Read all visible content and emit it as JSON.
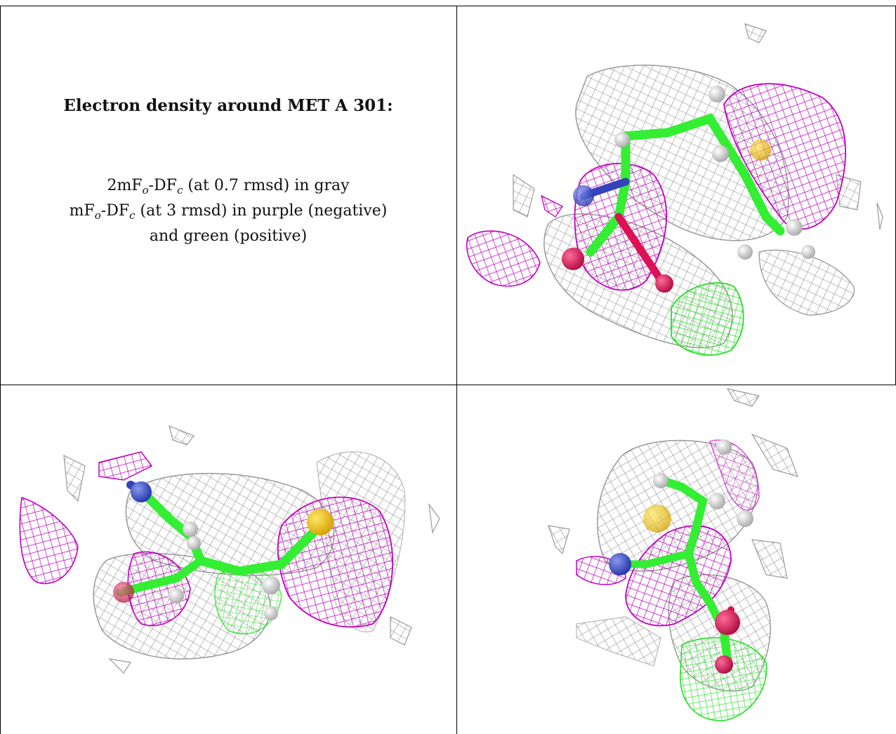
{
  "caption": {
    "title": "Electron density around MET A 301:",
    "line1": {
      "prefix": "2mF",
      "sub1": "o",
      "mid": "-DF",
      "sub2": "c",
      "suffix": " (at 0.7 rmsd) in gray"
    },
    "line2": {
      "prefix": "mF",
      "sub1": "o",
      "mid": "-DF",
      "sub2": "c",
      "suffix": " (at 3 rmsd) in purple (negative)"
    },
    "line3": "and green (positive)"
  },
  "colors": {
    "gray_mesh": "#9a9a9a",
    "purple_mesh": "#c000c0",
    "green_mesh": "#22e022",
    "carbon": "#33ee33",
    "hydrogen": "#f2f2f2",
    "nitrogen": "#3344bb",
    "oxygen": "#dd1155",
    "sulfur": "#f5c400"
  },
  "panels": [
    {
      "view": "top-right"
    },
    {
      "view": "bottom-left"
    },
    {
      "view": "bottom-right"
    }
  ]
}
